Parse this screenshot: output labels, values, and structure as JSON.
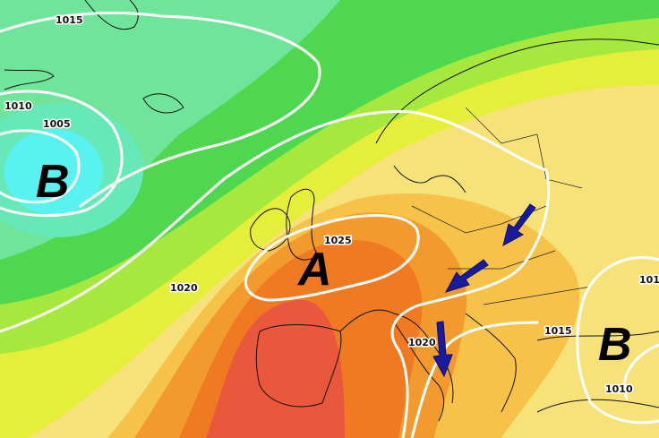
{
  "labels": {
    "isobars": [
      "1015",
      "1010",
      "1005",
      "1025",
      "1020",
      "1020",
      "1015",
      "1010",
      "101"
    ],
    "pressure_centers": [
      "B",
      "A",
      "B"
    ]
  }
}
